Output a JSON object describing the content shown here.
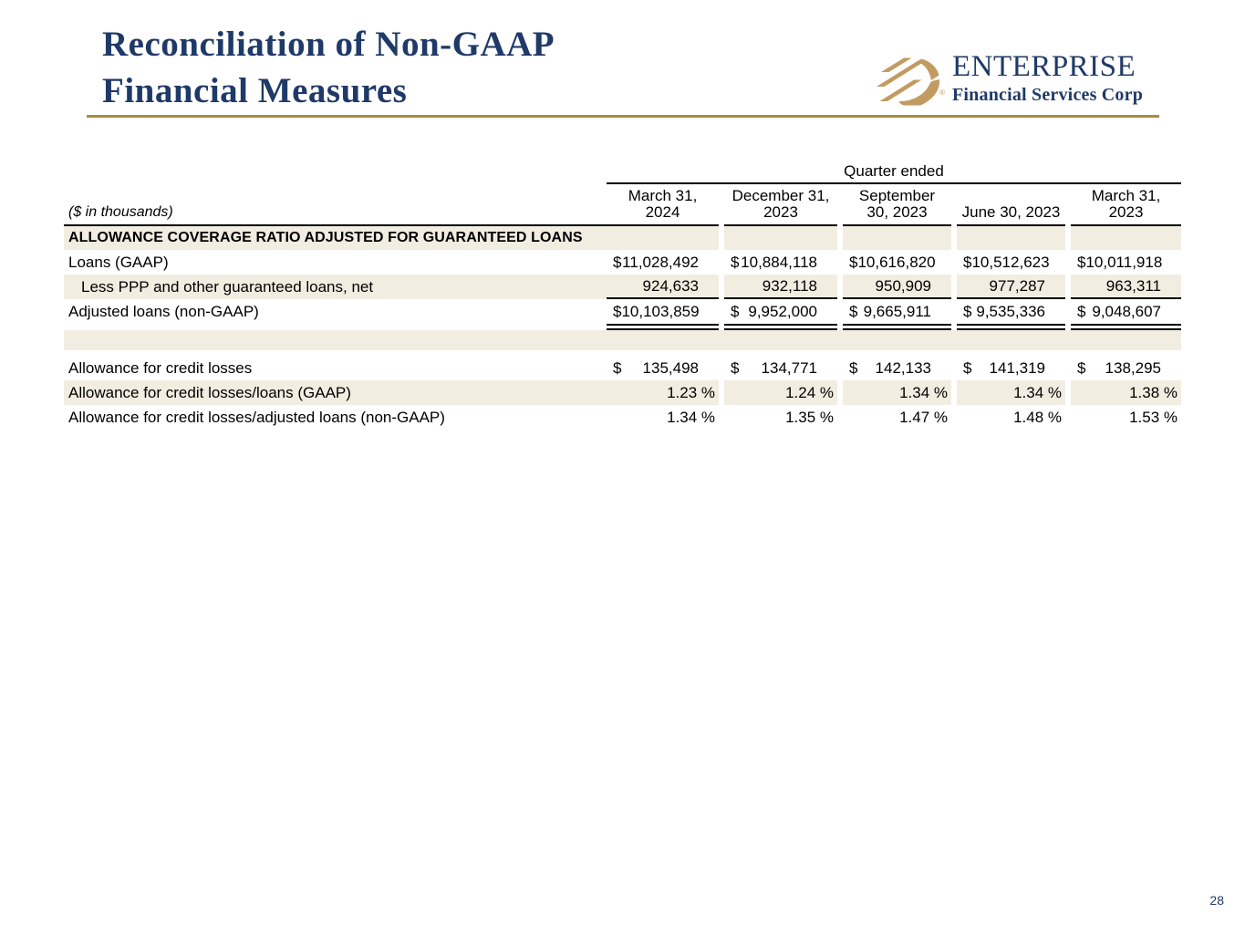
{
  "slide": {
    "title_line1": "Reconciliation of Non-GAAP",
    "title_line2": "Financial Measures",
    "page_number": "28"
  },
  "logo": {
    "name": "ENTERPRISE",
    "tagline": "Financial Services Corp",
    "registered_mark": "®",
    "icon": "enterprise-diagonal-stripes-icon",
    "colors": {
      "navy": "#1f3a68",
      "gold": "#c29b61",
      "divider_gold": "#a88c46"
    }
  },
  "table": {
    "units_note": "($ in thousands)",
    "span_header": "Quarter ended",
    "currency_symbol": "$",
    "shade_color": "#f2ede1",
    "columns": [
      [
        "March 31,",
        "2024"
      ],
      [
        "December 31,",
        "2023"
      ],
      [
        "September",
        "30, 2023"
      ],
      [
        "June 30, 2023"
      ],
      [
        "March 31,",
        "2023"
      ]
    ],
    "rows": [
      {
        "type": "section",
        "shaded": true,
        "label": "ALLOWANCE COVERAGE RATIO ADJUSTED FOR GUARANTEED LOANS"
      },
      {
        "type": "data",
        "shaded": false,
        "dollar": true,
        "label": "Loans (GAAP)",
        "values": [
          "11,028,492",
          "10,884,118",
          "10,616,820",
          "10,512,623",
          "10,011,918"
        ]
      },
      {
        "type": "data",
        "shaded": true,
        "indent": true,
        "rule": "single",
        "label": "Less PPP and other guaranteed loans, net",
        "values": [
          "924,633",
          "932,118",
          "950,909",
          "977,287",
          "963,311"
        ]
      },
      {
        "type": "data",
        "shaded": false,
        "dollar": true,
        "label": "Adjusted loans (non-GAAP)",
        "values": [
          "10,103,859",
          "9,952,000",
          "9,665,911",
          "9,535,336",
          "9,048,607"
        ]
      },
      {
        "type": "double-rule"
      },
      {
        "type": "spacer",
        "shaded": true,
        "height": 22
      },
      {
        "type": "spacer",
        "shaded": false,
        "height": 6
      },
      {
        "type": "data",
        "shaded": false,
        "dollar": true,
        "label": "Allowance for credit losses",
        "values": [
          "135,498",
          "134,771",
          "142,133",
          "141,319",
          "138,295"
        ]
      },
      {
        "type": "data",
        "shaded": true,
        "suffix": "%",
        "label": "Allowance for credit losses/loans (GAAP)",
        "values": [
          "1.23",
          "1.24",
          "1.34",
          "1.34",
          "1.38"
        ]
      },
      {
        "type": "data",
        "shaded": false,
        "suffix": "%",
        "label": "Allowance for credit losses/adjusted loans (non-GAAP)",
        "values": [
          "1.34",
          "1.35",
          "1.47",
          "1.48",
          "1.53"
        ]
      }
    ]
  }
}
